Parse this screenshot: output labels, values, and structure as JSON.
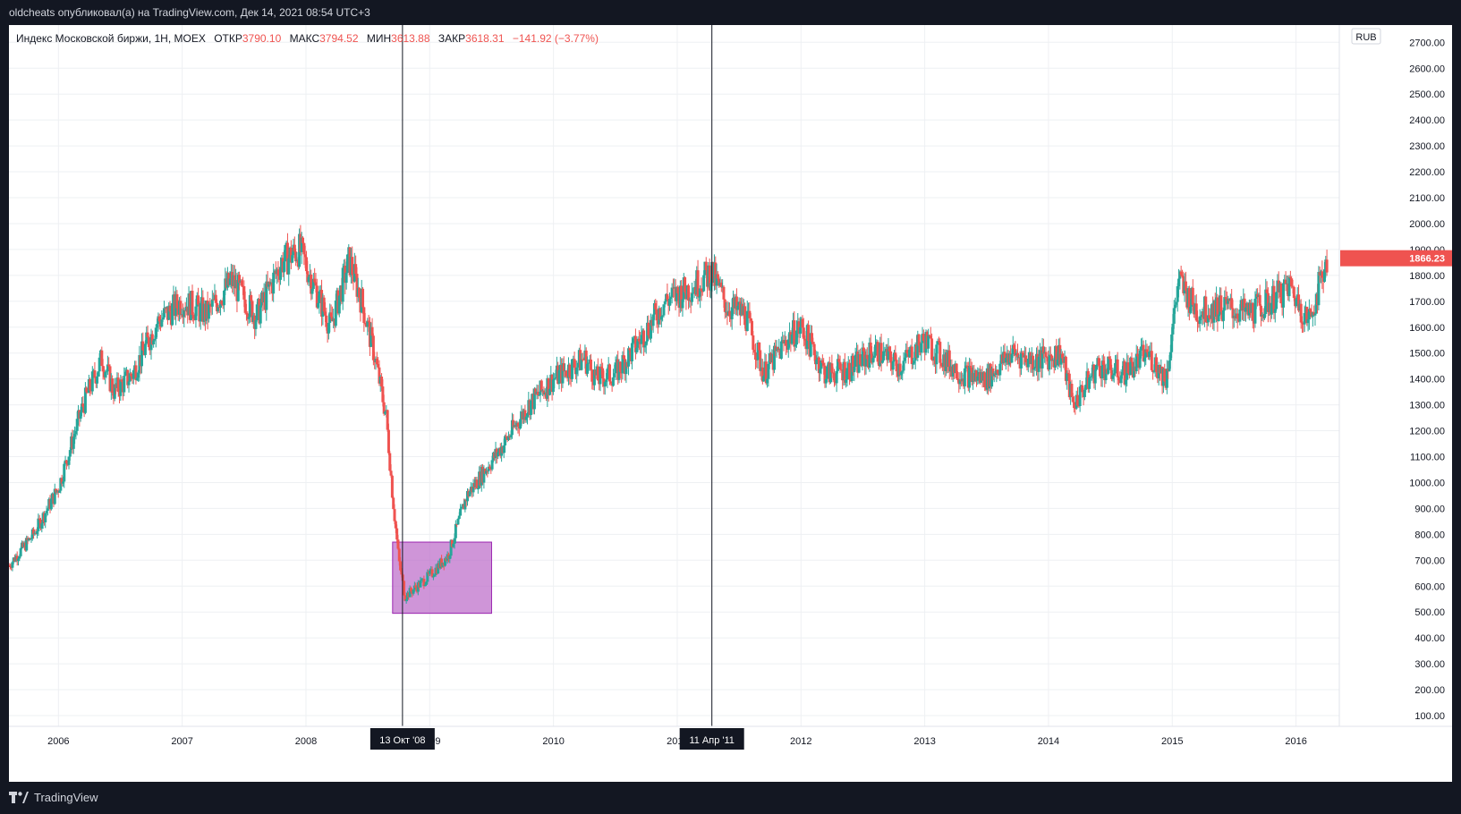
{
  "header": {
    "published": "oldcheats опубликовал(а) на TradingView.com, Дек 14, 2021 08:54 UTC+3"
  },
  "legend": {
    "symbol": "Индекс Московской биржи, 1Н, MOEX",
    "open_label": "ОТКР",
    "open": "3790.10",
    "high_label": "МАКС",
    "high": "3794.52",
    "low_label": "МИН",
    "low": "3613.88",
    "close_label": "ЗАКР",
    "close": "3618.31",
    "change": "−141.92 (−3.77%)"
  },
  "currency": "RUB",
  "last_price": "1866.23",
  "y_ticks": [
    "2700.00",
    "2600.00",
    "2500.00",
    "2400.00",
    "2300.00",
    "2200.00",
    "2100.00",
    "2000.00",
    "1900.00",
    "1800.00",
    "1700.00",
    "1600.00",
    "1500.00",
    "1400.00",
    "1300.00",
    "1200.00",
    "1100.00",
    "1000.00",
    "900.00",
    "800.00",
    "700.00",
    "600.00",
    "500.00",
    "400.00",
    "300.00",
    "200.00",
    "100.00"
  ],
  "x_ticks": [
    "2006",
    "2007",
    "2008",
    "2009",
    "2010",
    "2011",
    "2012",
    "2013",
    "2014",
    "2015",
    "2016"
  ],
  "vlines": [
    {
      "date": "13 Окт '08",
      "at_year": 2008.78
    },
    {
      "date": "11 Апр '11",
      "at_year": 2011.28
    }
  ],
  "highlight_zone": {
    "from_year": 2008.7,
    "to_year": 2009.5,
    "low": 495,
    "high": 770
  },
  "colors": {
    "up": "#26a69a",
    "down": "#ef5350",
    "highlight": "#ba68c8",
    "price_tag": "#ef5350"
  },
  "footer": {
    "brand": "TradingView"
  },
  "chart_data": {
    "type": "line",
    "title": "",
    "xlabel": "",
    "ylabel": "",
    "ylim": [
      50,
      2750
    ],
    "xlim": [
      2005.6,
      2016.35
    ],
    "series": [
      {
        "x": [
          2005.6,
          2005.8,
          2006.0,
          2006.2,
          2006.35,
          2006.45,
          2006.6,
          2006.8,
          2007.0,
          2007.2,
          2007.4,
          2007.6,
          2007.8,
          2007.95,
          2008.1,
          2008.2,
          2008.35,
          2008.45,
          2008.55,
          2008.65,
          2008.7,
          2008.75,
          2008.8,
          2008.9,
          2009.0,
          2009.15,
          2009.3,
          2009.45,
          2009.6,
          2009.8,
          2010.0,
          2010.25,
          2010.35,
          2010.5,
          2010.7,
          2010.9,
          2011.1,
          2011.28,
          2011.4,
          2011.55,
          2011.7,
          2011.9,
          2012.0,
          2012.2,
          2012.4,
          2012.6,
          2012.8,
          2013.0,
          2013.1,
          2013.3,
          2013.5,
          2013.7,
          2013.9,
          2014.1,
          2014.2,
          2014.4,
          2014.6,
          2014.8,
          2014.95,
          2015.05,
          2015.2,
          2015.4,
          2015.6,
          2015.8,
          2015.95,
          2016.1,
          2016.2,
          2016.25
        ],
        "y": [
          680,
          800,
          980,
          1300,
          1480,
          1350,
          1420,
          1620,
          1700,
          1650,
          1780,
          1640,
          1850,
          1900,
          1720,
          1600,
          1860,
          1700,
          1500,
          1250,
          950,
          700,
          560,
          600,
          640,
          720,
          950,
          1050,
          1150,
          1300,
          1400,
          1480,
          1400,
          1420,
          1550,
          1700,
          1750,
          1810,
          1680,
          1650,
          1420,
          1560,
          1600,
          1420,
          1440,
          1510,
          1450,
          1550,
          1500,
          1420,
          1400,
          1500,
          1470,
          1500,
          1300,
          1450,
          1420,
          1500,
          1400,
          1780,
          1660,
          1680,
          1650,
          1700,
          1760,
          1620,
          1780,
          1866.23
        ]
      }
    ]
  }
}
